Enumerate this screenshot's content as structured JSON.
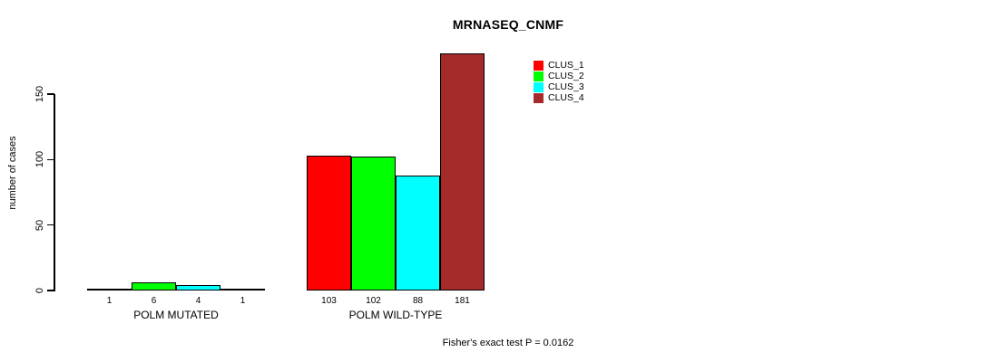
{
  "chart_data": {
    "type": "bar",
    "title": "MRNASEQ_CNMF",
    "ylabel": "number of cases",
    "xlabel": "",
    "yticks": [
      0,
      50,
      100,
      150
    ],
    "axis_range": [
      0,
      150
    ],
    "grid": false,
    "legend_position": "top-right-inside",
    "bar_value_labels": true,
    "categories": [
      "POLM MUTATED",
      "POLM WILD-TYPE"
    ],
    "series": [
      {
        "name": "CLUS_1",
        "color": "#FF0000",
        "values": [
          1,
          103
        ]
      },
      {
        "name": "CLUS_2",
        "color": "#00FF00",
        "values": [
          6,
          102
        ]
      },
      {
        "name": "CLUS_3",
        "color": "#00FFFF",
        "values": [
          4,
          88
        ]
      },
      {
        "name": "CLUS_4",
        "color": "#A52A2A",
        "values": [
          1,
          181
        ]
      }
    ],
    "footnote": "Fisher's exact test P = 0.0162"
  },
  "colors": {
    "background": "#FFFFFF",
    "axis": "#000000",
    "text": "#000000"
  }
}
